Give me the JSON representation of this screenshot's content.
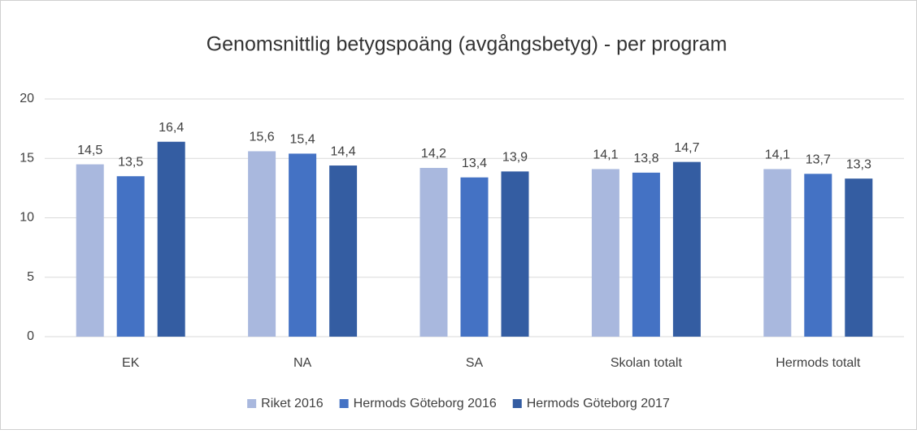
{
  "chart_data": {
    "type": "bar",
    "title": "Genomsnittlig betygspoäng (avgångsbetyg) - per program",
    "categories": [
      "EK",
      "NA",
      "SA",
      "Skolan totalt",
      "Hermods totalt"
    ],
    "series": [
      {
        "name": "Riket 2016",
        "color": "#a9b8de",
        "values": [
          14.5,
          15.6,
          14.2,
          14.1,
          14.1
        ],
        "value_labels": [
          "14,5",
          "15,6",
          "14,2",
          "14,1",
          "14,1"
        ]
      },
      {
        "name": "Hermods Göteborg 2016",
        "color": "#4472c4",
        "values": [
          13.5,
          15.4,
          13.4,
          13.8,
          13.7
        ],
        "value_labels": [
          "13,5",
          "15,4",
          "13,4",
          "13,8",
          "13,7"
        ]
      },
      {
        "name": "Hermods Göteborg 2017",
        "color": "#345da2",
        "values": [
          16.4,
          14.4,
          13.9,
          14.7,
          13.3
        ],
        "value_labels": [
          "16,4",
          "14,4",
          "13,9",
          "14,7",
          "13,3"
        ]
      }
    ],
    "ylim": [
      0,
      20
    ],
    "yticks": [
      0,
      5,
      10,
      15,
      20
    ],
    "grid": true,
    "legend": "bottom"
  }
}
